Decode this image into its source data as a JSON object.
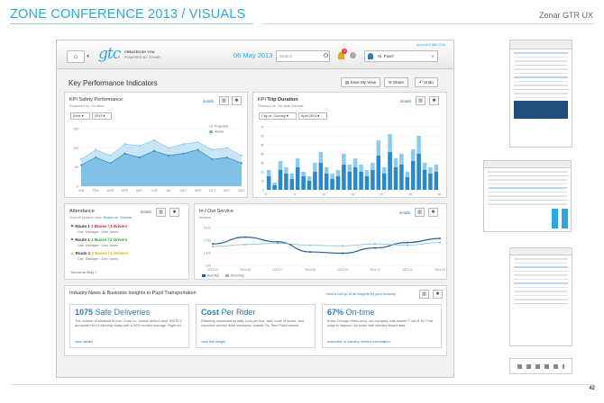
{
  "header": {
    "title": "ZONE CONFERENCE 2013 / VISUALS",
    "subtitle": "Zonar GTR UX",
    "page_number": "42"
  },
  "topbar": {
    "logo": "gtc",
    "tagline1": "CREATED BY YOU",
    "tagline2": "POWERED BY ZONAR",
    "account": "Account # ABC1234",
    "date_day": "06 May",
    "date_year": "2013",
    "search_placeholder": "Search",
    "notification_count": "3",
    "user": "Hi, Pixel!"
  },
  "kpi": {
    "title": "Key Performance Indicators",
    "actions": [
      "Save My View",
      "Share",
      "Undo"
    ]
  },
  "safety": {
    "title": "KPI Safety Performance",
    "subtitle": "Projected vs. On-time",
    "filter1": "Zone",
    "filter2": "2013",
    "details": "details",
    "legend": [
      "Projected",
      "Actual"
    ]
  },
  "trip": {
    "title_prefix": "KPI",
    "title_bold": "Trip Duration",
    "subtitle": "Planned vs. On-time Arrivals",
    "filter1": "City vs. Country",
    "filter2": "April 2013",
    "details": "details"
  },
  "attendance": {
    "title": "Attendance",
    "details": "details",
    "subtitle": "Overall system view:",
    "subtitle_link": "Buses vs. Drivers",
    "routes": [
      {
        "name": "Route 1",
        "status": "2 Buses / 2 Drivers",
        "manager": "Dist. Manager: John Jones"
      },
      {
        "name": "Route 1",
        "status": "1 Buses / 2 Drivers",
        "manager": "Dist. Manager: John Jones"
      },
      {
        "name": "Route 1",
        "status": "2 Buses / 1 Drivers",
        "manager": "Dist. Manager: John Jones"
      }
    ],
    "footer": "Tomorrow May 7"
  },
  "inout": {
    "title": "In / Out Service",
    "subtitle": "Metrics",
    "details": "details",
    "legend": [
      "Best Mgr",
      "Worst Mgr"
    ]
  },
  "news": {
    "title": "Industry News & Business Insights in Pupil Transportation",
    "link": "view a roll-up of all insights by your industry",
    "cards": [
      {
        "number": "1075",
        "headline": "Safe Deliveries",
        "body": "The number of students in your Cook Co. School district were SAFELY accounted for in ridership today with a 90% on-time average. Right on!",
        "link": "view details"
      },
      {
        "number": "Cost",
        "headline": "Per Rider",
        "body": "Efficiency measured by daily runs per bus, daily route of buses, and important service level measures, include On-Time Performance.",
        "link": "view this insight"
      },
      {
        "number": "67%",
        "headline": "On-time",
        "body": "In the Chicago Metro area, our company was ranked 7 out of 10. Find ways to improve our score with industry Board data.",
        "link": "subscribe to industry metrics information"
      }
    ]
  },
  "chart_data": [
    {
      "type": "area",
      "title": "KPI Safety Performance",
      "categories": [
        "JAN",
        "FEB",
        "MAR",
        "APR",
        "MAY",
        "JUN",
        "JUL",
        "AUG",
        "SEP",
        "OCT",
        "NOV",
        "DEC"
      ],
      "ylim": [
        0,
        150
      ],
      "yticks": [
        0,
        50,
        100,
        150
      ],
      "series": [
        {
          "name": "Projected",
          "values": [
            70,
            95,
            80,
            110,
            105,
            120,
            100,
            110,
            115,
            95,
            100,
            80
          ]
        },
        {
          "name": "Actual",
          "values": [
            55,
            75,
            60,
            85,
            75,
            92,
            80,
            85,
            95,
            70,
            75,
            60
          ]
        }
      ]
    },
    {
      "type": "bar",
      "title": "KPI Trip Duration",
      "xticks": [
        0,
        5,
        10,
        15,
        20,
        25,
        30
      ],
      "ylim": [
        0,
        70
      ],
      "yticks": [
        0,
        10,
        20,
        30,
        40,
        50,
        60,
        70
      ],
      "series": [
        {
          "name": "Planned",
          "values": [
            22,
            8,
            32,
            25,
            18,
            35,
            20,
            15,
            30,
            42,
            25,
            18,
            22,
            40,
            28,
            35,
            28,
            22,
            30,
            55,
            25,
            62,
            35,
            40,
            20,
            45,
            60,
            30,
            25,
            28
          ]
        },
        {
          "name": "On-time",
          "values": [
            15,
            5,
            22,
            18,
            12,
            25,
            15,
            10,
            20,
            30,
            18,
            12,
            15,
            28,
            20,
            25,
            20,
            15,
            22,
            38,
            18,
            42,
            25,
            28,
            14,
            32,
            40,
            22,
            18,
            20
          ]
        }
      ]
    },
    {
      "type": "line",
      "title": "In / Out Service",
      "categories": [
        "2013-05",
        "2013-06",
        "2013-07",
        "2013-08",
        "2013-09",
        "2013-10",
        "2013-11",
        "2013-12"
      ],
      "yticks": [
        "0.00",
        "1.875",
        "3.750",
        "5.625"
      ],
      "series": [
        {
          "name": "Best Mgr",
          "values": [
            3.2,
            4.2,
            3.5,
            2.0,
            1.8,
            2.6,
            3.4,
            4.0
          ]
        },
        {
          "name": "Worst Mgr",
          "values": [
            2.8,
            3.1,
            3.3,
            3.0,
            2.9,
            3.2,
            3.0,
            3.4
          ]
        }
      ]
    }
  ]
}
